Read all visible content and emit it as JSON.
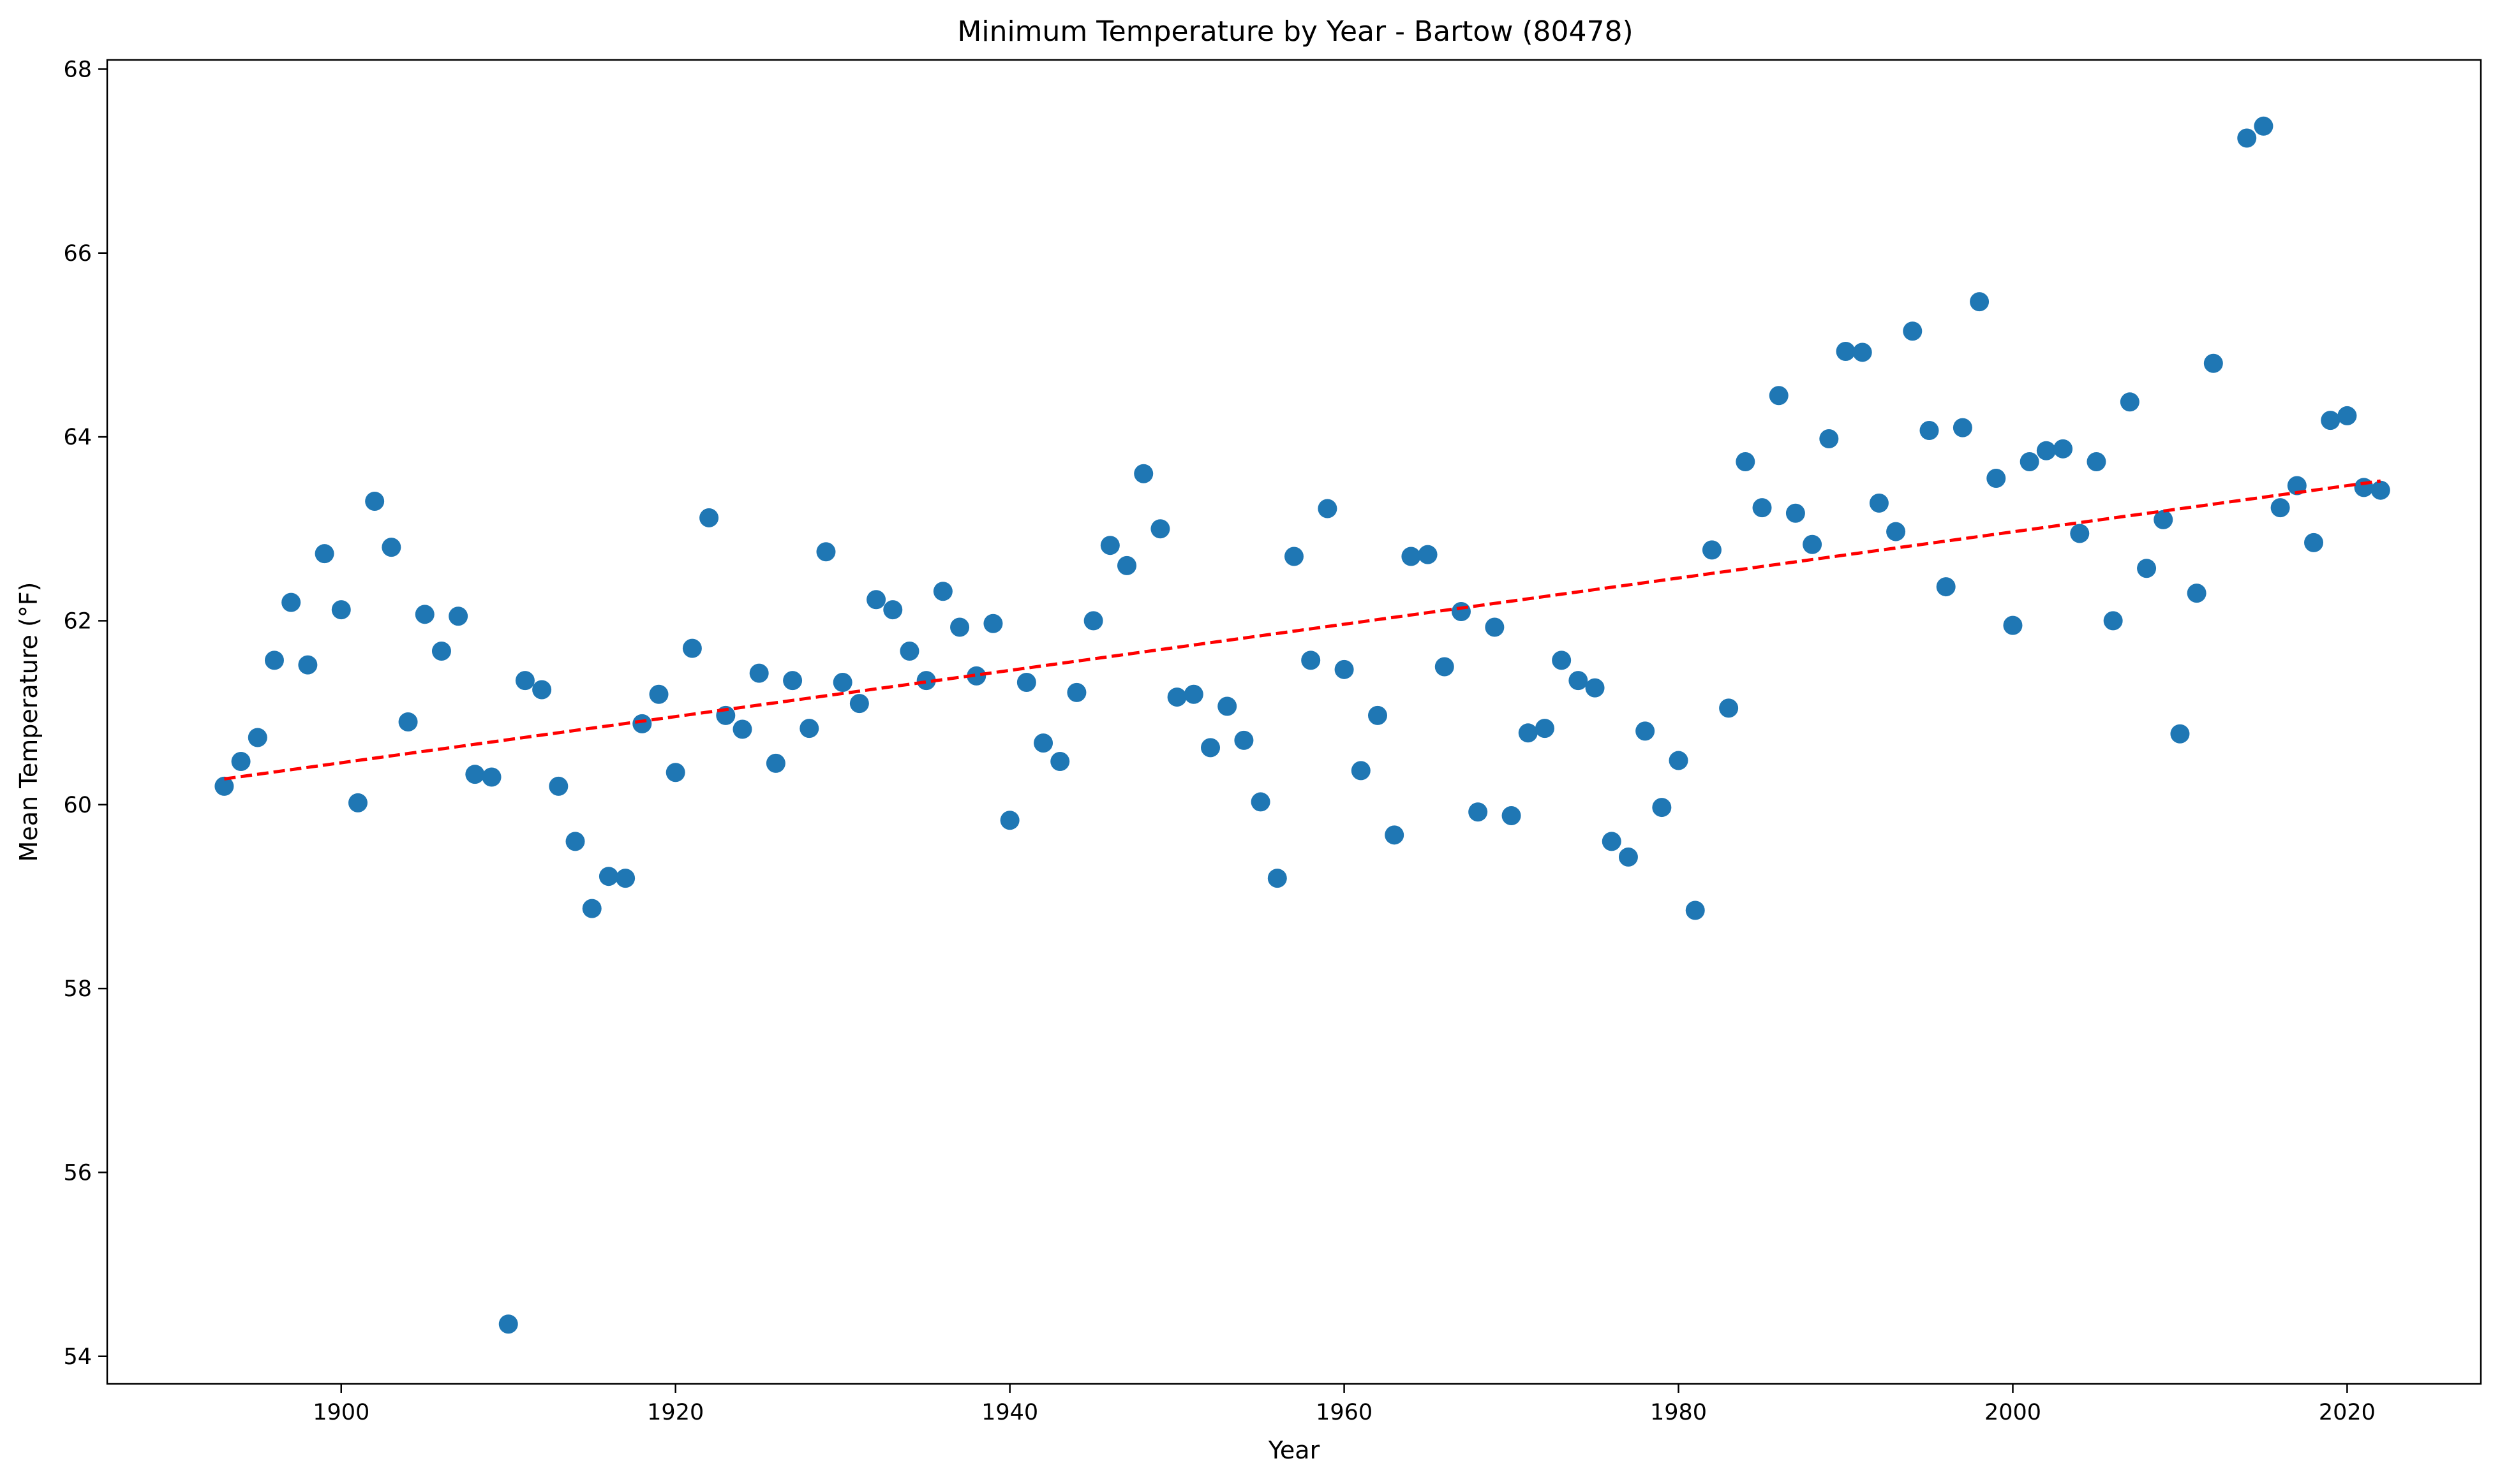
{
  "chart_data": {
    "type": "scatter",
    "title": "Minimum Temperature by Year - Bartow (80478)",
    "xlabel": "Year",
    "ylabel": "Mean Temperature (°F)",
    "xlim": [
      1886,
      2028
    ],
    "ylim": [
      53.7,
      68.1
    ],
    "xticks": [
      1900,
      1920,
      1940,
      1960,
      1980,
      2000,
      2020
    ],
    "yticks": [
      54,
      56,
      58,
      60,
      62,
      64,
      66,
      68
    ],
    "grid": false,
    "point_color": "#1f77b4",
    "trend_color": "#ff0000",
    "trend_style": "dashed",
    "trend": {
      "x": [
        1893,
        2022
      ],
      "y": [
        60.28,
        63.52
      ]
    },
    "points": [
      [
        1893,
        60.2
      ],
      [
        1894,
        60.47
      ],
      [
        1895,
        60.73
      ],
      [
        1896,
        61.57
      ],
      [
        1897,
        62.2
      ],
      [
        1898,
        61.52
      ],
      [
        1899,
        62.73
      ],
      [
        1900,
        62.12
      ],
      [
        1901,
        60.02
      ],
      [
        1902,
        63.3
      ],
      [
        1903,
        62.8
      ],
      [
        1904,
        60.9
      ],
      [
        1905,
        62.07
      ],
      [
        1906,
        61.67
      ],
      [
        1907,
        62.05
      ],
      [
        1908,
        60.33
      ],
      [
        1909,
        60.3
      ],
      [
        1910,
        54.35
      ],
      [
        1911,
        61.35
      ],
      [
        1912,
        61.25
      ],
      [
        1913,
        60.2
      ],
      [
        1914,
        59.6
      ],
      [
        1915,
        58.87
      ],
      [
        1916,
        59.22
      ],
      [
        1917,
        59.2
      ],
      [
        1918,
        60.88
      ],
      [
        1919,
        61.2
      ],
      [
        1920,
        60.35
      ],
      [
        1921,
        61.7
      ],
      [
        1922,
        63.12
      ],
      [
        1923,
        60.97
      ],
      [
        1924,
        60.82
      ],
      [
        1925,
        61.43
      ],
      [
        1926,
        60.45
      ],
      [
        1927,
        61.35
      ],
      [
        1928,
        60.83
      ],
      [
        1929,
        62.75
      ],
      [
        1930,
        61.33
      ],
      [
        1931,
        61.1
      ],
      [
        1932,
        62.23
      ],
      [
        1933,
        62.12
      ],
      [
        1934,
        61.67
      ],
      [
        1935,
        61.35
      ],
      [
        1936,
        62.32
      ],
      [
        1937,
        61.93
      ],
      [
        1938,
        61.4
      ],
      [
        1939,
        61.97
      ],
      [
        1940,
        59.83
      ],
      [
        1941,
        61.33
      ],
      [
        1942,
        60.67
      ],
      [
        1943,
        60.47
      ],
      [
        1944,
        61.22
      ],
      [
        1945,
        62.0
      ],
      [
        1946,
        62.82
      ],
      [
        1947,
        62.6
      ],
      [
        1948,
        63.6
      ],
      [
        1949,
        63.0
      ],
      [
        1950,
        61.17
      ],
      [
        1951,
        61.2
      ],
      [
        1952,
        60.62
      ],
      [
        1953,
        61.07
      ],
      [
        1954,
        60.7
      ],
      [
        1955,
        60.03
      ],
      [
        1956,
        59.2
      ],
      [
        1957,
        62.7
      ],
      [
        1958,
        61.57
      ],
      [
        1959,
        63.22
      ],
      [
        1960,
        61.47
      ],
      [
        1961,
        60.37
      ],
      [
        1962,
        60.97
      ],
      [
        1963,
        59.67
      ],
      [
        1964,
        62.7
      ],
      [
        1965,
        62.72
      ],
      [
        1966,
        61.5
      ],
      [
        1967,
        62.1
      ],
      [
        1968,
        59.92
      ],
      [
        1969,
        61.93
      ],
      [
        1970,
        59.88
      ],
      [
        1971,
        60.78
      ],
      [
        1972,
        60.83
      ],
      [
        1973,
        61.57
      ],
      [
        1974,
        61.35
      ],
      [
        1975,
        61.27
      ],
      [
        1976,
        59.6
      ],
      [
        1977,
        59.43
      ],
      [
        1978,
        60.8
      ],
      [
        1979,
        59.97
      ],
      [
        1980,
        60.48
      ],
      [
        1981,
        58.85
      ],
      [
        1982,
        62.77
      ],
      [
        1983,
        61.05
      ],
      [
        1984,
        63.73
      ],
      [
        1985,
        63.23
      ],
      [
        1986,
        64.45
      ],
      [
        1987,
        63.17
      ],
      [
        1988,
        62.83
      ],
      [
        1989,
        63.98
      ],
      [
        1990,
        64.93
      ],
      [
        1991,
        64.92
      ],
      [
        1992,
        63.28
      ],
      [
        1993,
        62.97
      ],
      [
        1994,
        65.15
      ],
      [
        1995,
        64.07
      ],
      [
        1996,
        62.37
      ],
      [
        1997,
        64.1
      ],
      [
        1998,
        65.47
      ],
      [
        1999,
        63.55
      ],
      [
        2000,
        61.95
      ],
      [
        2001,
        63.73
      ],
      [
        2002,
        63.85
      ],
      [
        2003,
        63.87
      ],
      [
        2004,
        62.95
      ],
      [
        2005,
        63.73
      ],
      [
        2006,
        62.0
      ],
      [
        2007,
        64.38
      ],
      [
        2008,
        62.57
      ],
      [
        2009,
        63.1
      ],
      [
        2010,
        60.77
      ],
      [
        2011,
        62.3
      ],
      [
        2012,
        64.8
      ],
      [
        2014,
        67.25
      ],
      [
        2015,
        67.38
      ],
      [
        2016,
        63.23
      ],
      [
        2017,
        63.47
      ],
      [
        2018,
        62.85
      ],
      [
        2019,
        64.18
      ],
      [
        2020,
        64.23
      ],
      [
        2021,
        63.45
      ],
      [
        2022,
        63.42
      ]
    ]
  }
}
